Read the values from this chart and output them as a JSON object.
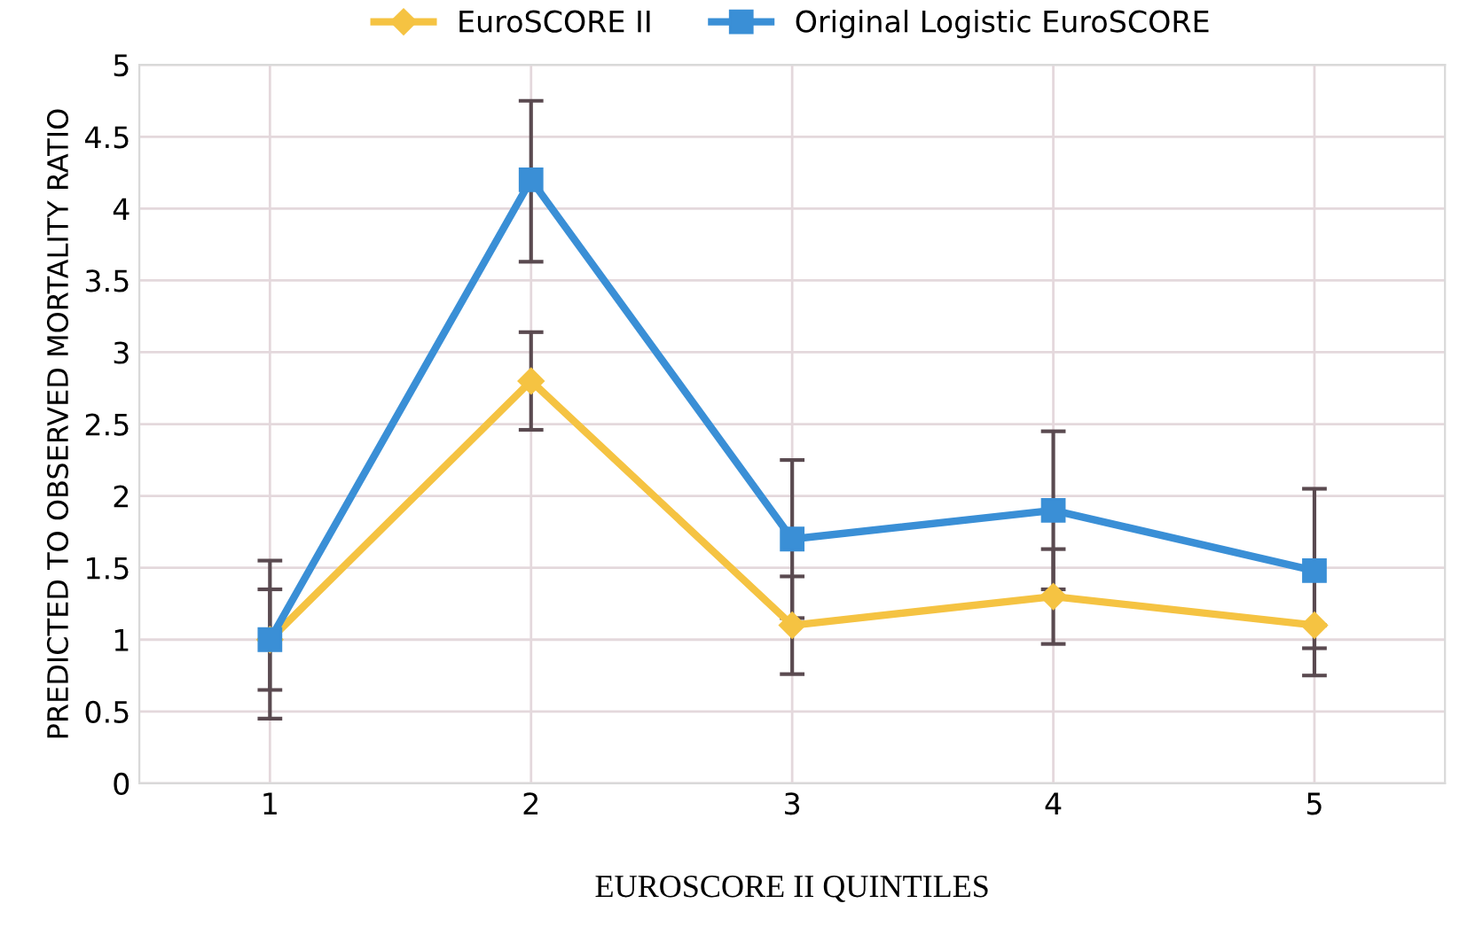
{
  "chart_data": {
    "type": "line",
    "xlabel": "EUROSCORE II QUINTILES",
    "ylabel": "PREDICTED TO OBSERVED MORTALITY RATIO",
    "categories": [
      "1",
      "2",
      "3",
      "4",
      "5"
    ],
    "series": [
      {
        "name": "EuroSCORE II",
        "color": "#f5c342",
        "marker": "diamond",
        "values": [
          1.0,
          2.8,
          1.1,
          1.3,
          1.1
        ],
        "errors": [
          [
            0.65,
            1.35
          ],
          [
            2.46,
            3.14
          ],
          [
            0.76,
            1.44
          ],
          [
            0.97,
            1.63
          ],
          [
            0.75,
            1.1
          ]
        ]
      },
      {
        "name": "Original Logistic EuroSCORE",
        "color": "#3a8fd6",
        "marker": "square",
        "values": [
          1.0,
          4.2,
          1.7,
          1.9,
          1.48
        ],
        "errors": [
          [
            0.45,
            1.55
          ],
          [
            3.63,
            4.75
          ],
          [
            1.15,
            2.25
          ],
          [
            1.35,
            2.45
          ],
          [
            0.94,
            2.05
          ]
        ]
      }
    ],
    "ylim": [
      0,
      5
    ],
    "yticks": [
      0,
      0.5,
      1,
      1.5,
      2,
      2.5,
      3,
      3.5,
      4,
      4.5,
      5
    ],
    "grid": true,
    "legend": "top",
    "line_style": "solid"
  }
}
